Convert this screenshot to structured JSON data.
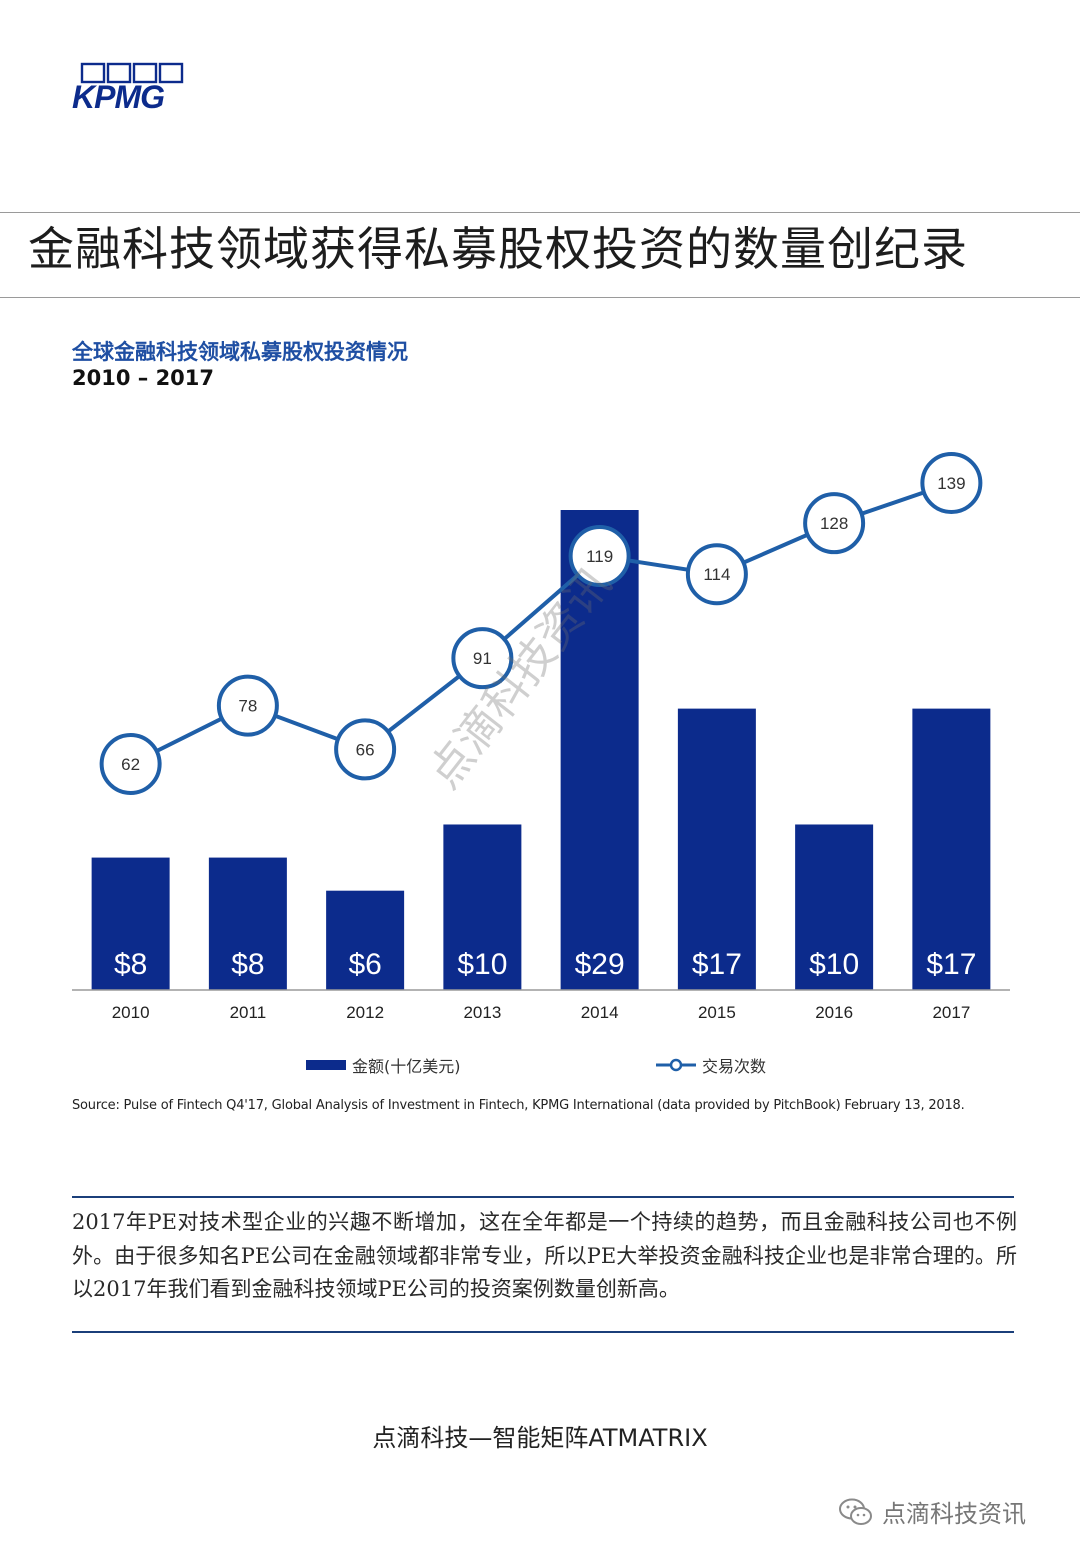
{
  "logo": {
    "text": "KPMG"
  },
  "headline": "金融科技领域获得私募股权投资的数量创纪录",
  "chart_data": {
    "type": "bar",
    "title": "全球金融科技领域私募股权投资情况",
    "subtitle": "2010 – 2017",
    "categories": [
      "2010",
      "2011",
      "2012",
      "2013",
      "2014",
      "2015",
      "2016",
      "2017"
    ],
    "series": [
      {
        "name": "金额(十亿美元)",
        "type": "bar",
        "values": [
          8,
          8,
          6,
          10,
          29,
          17,
          10,
          17
        ],
        "labels": [
          "$8",
          "$8",
          "$6",
          "$10",
          "$29",
          "$17",
          "$10",
          "$17"
        ]
      },
      {
        "name": "交易次数",
        "type": "line",
        "values": [
          62,
          78,
          66,
          91,
          119,
          114,
          128,
          139
        ]
      }
    ],
    "colors": {
      "bar": "#0c2b8c",
      "line": "#1f5fa8",
      "marker_fill": "#ffffff"
    },
    "legend_position": "bottom",
    "grid": false
  },
  "source": "Source: Pulse of Fintech Q4'17, Global Analysis of Investment in Fintech, KPMG International (data provided by PitchBook) February 13, 2018.",
  "paragraph": "2017年PE对技术型企业的兴趣不断增加，这在全年都是一个持续的趋势，而且金融科技公司也不例外。由于很多知名PE公司在金融领域都非常专业，所以PE大举投资金融科技企业也是非常合理的。所以2017年我们看到金融科技领域PE公司的投资案例数量创新高。",
  "footer": "点滴科技—智能矩阵ATMATRIX",
  "watermark": "点滴科技资讯",
  "wechat_label": "点滴科技资讯"
}
